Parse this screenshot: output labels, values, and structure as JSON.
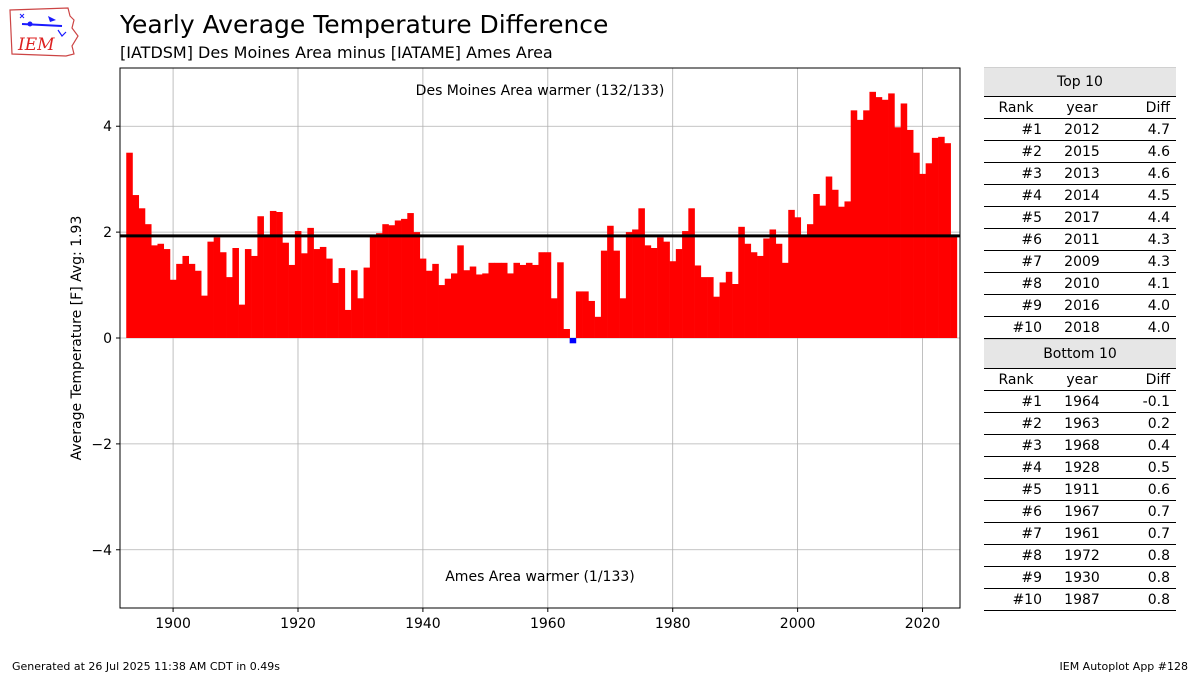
{
  "logo": {
    "text": "IEM"
  },
  "header": {
    "title": "Yearly Average Temperature Difference",
    "subtitle": "[IATDSM] Des Moines Area minus [IATAME] Ames Area"
  },
  "chart_data": {
    "type": "bar",
    "ylabel": "Average Temperature [F] Avg: 1.93",
    "xlabel": "",
    "xlim": [
      1891.5,
      2026
    ],
    "ylim": [
      -5.1,
      5.1
    ],
    "xticks": [
      1900,
      1920,
      1940,
      1960,
      1980,
      2000,
      2020
    ],
    "yticks": [
      -4,
      -2,
      0,
      2,
      4
    ],
    "ytick_labels": [
      "−4",
      "−2",
      "0",
      "2",
      "4"
    ],
    "grid": true,
    "average": 1.93,
    "annotation_top": "Des Moines Area warmer (132/133)",
    "annotation_bottom": "Ames Area warmer (1/133)",
    "colors": {
      "positive": "#ff0000",
      "negative": "#0000ff",
      "average_line": "#000000"
    },
    "start_year": 1893,
    "values": [
      3.5,
      2.7,
      2.45,
      2.15,
      1.75,
      1.78,
      1.68,
      1.1,
      1.4,
      1.55,
      1.4,
      1.27,
      0.8,
      1.82,
      1.9,
      1.62,
      1.15,
      1.7,
      0.63,
      1.68,
      1.55,
      2.3,
      1.95,
      2.4,
      2.38,
      1.8,
      1.38,
      2.02,
      1.6,
      2.08,
      1.68,
      1.72,
      1.5,
      1.04,
      1.32,
      0.53,
      1.28,
      0.75,
      1.33,
      1.95,
      1.98,
      2.15,
      2.13,
      2.22,
      2.25,
      2.36,
      2.0,
      1.5,
      1.27,
      1.4,
      1.0,
      1.12,
      1.22,
      1.75,
      1.28,
      1.35,
      1.2,
      1.22,
      1.42,
      1.42,
      1.42,
      1.22,
      1.42,
      1.38,
      1.42,
      1.38,
      1.62,
      1.62,
      0.75,
      1.43,
      0.17,
      -0.1,
      0.88,
      0.88,
      0.7,
      0.4,
      1.65,
      2.12,
      1.65,
      0.75,
      2.0,
      2.05,
      2.45,
      1.75,
      1.7,
      1.9,
      1.82,
      1.45,
      1.68,
      2.02,
      2.45,
      1.37,
      1.15,
      1.15,
      0.78,
      1.05,
      1.25,
      1.02,
      2.1,
      1.78,
      1.62,
      1.55,
      1.88,
      2.05,
      1.78,
      1.42,
      2.42,
      2.28,
      1.95,
      2.15,
      2.72,
      2.5,
      3.05,
      2.8,
      2.48,
      2.58,
      4.3,
      4.12,
      4.3,
      4.65,
      4.55,
      4.5,
      4.62,
      3.98,
      4.43,
      3.93,
      3.5,
      3.1,
      3.3,
      3.78,
      3.8,
      3.68,
      1.93
    ]
  },
  "top10": {
    "title": "Top 10",
    "headers": [
      "Rank",
      "year",
      "Diff"
    ],
    "rows": [
      {
        "rank": "#1",
        "year": "2012",
        "diff": "4.7"
      },
      {
        "rank": "#2",
        "year": "2015",
        "diff": "4.6"
      },
      {
        "rank": "#3",
        "year": "2013",
        "diff": "4.6"
      },
      {
        "rank": "#4",
        "year": "2014",
        "diff": "4.5"
      },
      {
        "rank": "#5",
        "year": "2017",
        "diff": "4.4"
      },
      {
        "rank": "#6",
        "year": "2011",
        "diff": "4.3"
      },
      {
        "rank": "#7",
        "year": "2009",
        "diff": "4.3"
      },
      {
        "rank": "#8",
        "year": "2010",
        "diff": "4.1"
      },
      {
        "rank": "#9",
        "year": "2016",
        "diff": "4.0"
      },
      {
        "rank": "#10",
        "year": "2018",
        "diff": "4.0"
      }
    ]
  },
  "bottom10": {
    "title": "Bottom 10",
    "headers": [
      "Rank",
      "year",
      "Diff"
    ],
    "rows": [
      {
        "rank": "#1",
        "year": "1964",
        "diff": "-0.1"
      },
      {
        "rank": "#2",
        "year": "1963",
        "diff": "0.2"
      },
      {
        "rank": "#3",
        "year": "1968",
        "diff": "0.4"
      },
      {
        "rank": "#4",
        "year": "1928",
        "diff": "0.5"
      },
      {
        "rank": "#5",
        "year": "1911",
        "diff": "0.6"
      },
      {
        "rank": "#6",
        "year": "1967",
        "diff": "0.7"
      },
      {
        "rank": "#7",
        "year": "1961",
        "diff": "0.7"
      },
      {
        "rank": "#8",
        "year": "1972",
        "diff": "0.8"
      },
      {
        "rank": "#9",
        "year": "1930",
        "diff": "0.8"
      },
      {
        "rank": "#10",
        "year": "1987",
        "diff": "0.8"
      }
    ]
  },
  "footer": {
    "generated": "Generated at 26 Jul 2025 11:38 AM CDT in 0.49s",
    "app": "IEM Autoplot App #128"
  }
}
